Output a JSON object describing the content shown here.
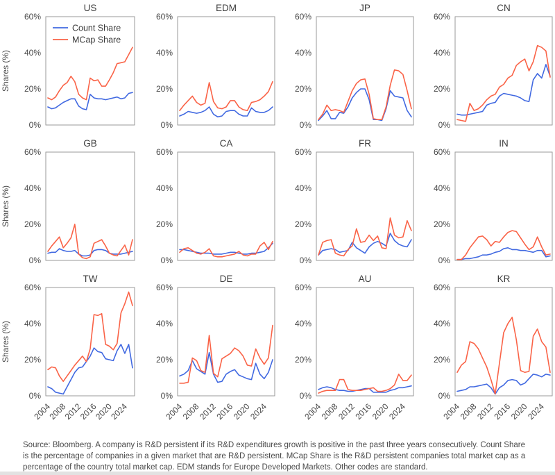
{
  "legend": {
    "items": [
      {
        "label": "Count Share",
        "color": "#4169e1"
      },
      {
        "label": "MCap Share",
        "color": "#fa6347"
      }
    ]
  },
  "footer": {
    "lines": [
      "Source: Bloomberg.  A company is R&D persistent if its R&D expenditures growth is positive in the past three years consecutively.  Count Share",
      "is the percentage of companies in a given market that are R&D persistent.  MCap Share is the R&D persistent companies total market cap as a",
      "percentage of the country total market cap.  EDM stands for Europe Developed Markets. Other codes are standard."
    ]
  },
  "chart_data": {
    "type": "line",
    "layout": "small-multiples-4x3",
    "grid": false,
    "legend_position": "inside-first-panel-top-left",
    "x": [
      2004,
      2005,
      2006,
      2007,
      2008,
      2009,
      2010,
      2011,
      2012,
      2013,
      2014,
      2015,
      2016,
      2017,
      2018,
      2019,
      2020,
      2021,
      2022,
      2023,
      2024,
      2025,
      2026
    ],
    "xticks": [
      2004,
      2008,
      2012,
      2016,
      2020,
      2024
    ],
    "ylim": [
      0,
      60
    ],
    "yticks": [
      0,
      20,
      40,
      60
    ],
    "ytick_labels": [
      "0%",
      "20%",
      "40%",
      "60%"
    ],
    "ylabel": "Shares (%)",
    "series_names": [
      "Count Share",
      "MCap Share"
    ],
    "colors": {
      "count_share": "#4169e1",
      "mcap_share": "#fa6347"
    },
    "panels": [
      {
        "title": "US",
        "count_share": [
          10,
          9,
          9.5,
          11,
          12.5,
          13.5,
          14.5,
          14.5,
          10.5,
          9,
          8.5,
          17,
          15,
          14.5,
          14.5,
          14,
          14.5,
          15,
          15.5,
          14.5,
          15,
          17.5,
          18
        ],
        "mcap_share": [
          15,
          14,
          15.5,
          19,
          22,
          23.5,
          27,
          24,
          17,
          15,
          14,
          26,
          24.5,
          25,
          21.5,
          21.5,
          25,
          29,
          34,
          34.5,
          35,
          39,
          43
        ]
      },
      {
        "title": "EDM",
        "count_share": [
          5,
          6,
          7.5,
          7,
          6.5,
          7,
          8,
          10,
          6,
          4.5,
          5,
          7.5,
          8,
          8,
          6,
          5,
          5,
          9.5,
          7.5,
          7,
          7,
          8,
          10
        ],
        "mcap_share": [
          8,
          11,
          13.5,
          16,
          12.5,
          11,
          12,
          23.5,
          13,
          9.5,
          9,
          10,
          13.5,
          13.5,
          10,
          8.5,
          8,
          12.5,
          13,
          14,
          16,
          18.5,
          24
        ]
      },
      {
        "title": "JP",
        "count_share": [
          2.5,
          5,
          8,
          3.5,
          3.5,
          7,
          6.5,
          10,
          15,
          18,
          20,
          20,
          14,
          3,
          3,
          2.5,
          9,
          19,
          16,
          15.5,
          15,
          8,
          4.5
        ],
        "mcap_share": [
          3,
          6,
          11,
          8,
          8.5,
          8,
          7,
          13,
          19,
          23,
          25,
          25.5,
          17,
          3.5,
          3,
          3,
          10,
          22,
          30.5,
          30,
          28,
          19,
          9
        ]
      },
      {
        "title": "CN",
        "count_share": [
          6,
          5.5,
          5.5,
          6,
          6.5,
          7,
          7.5,
          11,
          12,
          12.5,
          16,
          17.5,
          17,
          16.5,
          16,
          15,
          13.5,
          13,
          25,
          28.5,
          26,
          33.5,
          27
        ],
        "mcap_share": [
          3,
          2.5,
          2,
          12,
          8,
          9,
          11,
          14,
          16,
          17,
          21,
          22.5,
          26,
          27.5,
          33,
          35,
          36.5,
          30,
          35,
          44,
          43,
          41,
          26.5
        ]
      },
      {
        "title": "GB",
        "count_share": [
          4,
          4.5,
          4.5,
          6.5,
          5.5,
          5,
          5,
          5.5,
          3.5,
          2.5,
          2.5,
          3,
          5.5,
          6,
          6,
          5.5,
          4,
          3.5,
          3.5,
          3.5,
          4,
          4.5,
          5
        ],
        "mcap_share": [
          5,
          8,
          10.5,
          13,
          7,
          9.5,
          12.5,
          20,
          3.5,
          1.5,
          1,
          2,
          9.5,
          10.5,
          11.5,
          8,
          4,
          3,
          2.5,
          5.5,
          8.5,
          3,
          11.5
        ]
      },
      {
        "title": "CA",
        "count_share": [
          6,
          6,
          5.5,
          5,
          4.5,
          4,
          4,
          4,
          3.5,
          3.5,
          3.5,
          4,
          4.5,
          4.5,
          4,
          3.5,
          3.5,
          4,
          4,
          4.5,
          5,
          7,
          9.5
        ],
        "mcap_share": [
          4.5,
          6.5,
          7,
          5.5,
          4,
          3.5,
          4.5,
          6.5,
          2.5,
          2,
          2,
          2.5,
          3,
          3.5,
          5,
          3,
          2.5,
          3.5,
          3.5,
          8,
          10,
          6,
          10.5
        ]
      },
      {
        "title": "FR",
        "count_share": [
          3,
          5.5,
          6,
          6.5,
          6,
          4.5,
          5,
          5.5,
          10,
          7,
          5.5,
          4,
          7.5,
          9.5,
          10.5,
          9.5,
          8,
          15,
          11,
          9,
          8,
          7.5,
          11.5
        ],
        "mcap_share": [
          3,
          10,
          11,
          11.5,
          4,
          3,
          2.5,
          6,
          8,
          17.5,
          10,
          10.5,
          14,
          11,
          13.5,
          7,
          6.5,
          23.5,
          14,
          12.5,
          13,
          22,
          16.5
        ]
      },
      {
        "title": "IN",
        "count_share": [
          0.5,
          0.5,
          1,
          1,
          1.5,
          2,
          3,
          3,
          3.5,
          4.5,
          5,
          6.5,
          7,
          6,
          6,
          5.5,
          5.5,
          5,
          4.5,
          5.5,
          5.5,
          2,
          2.5
        ],
        "mcap_share": [
          0.5,
          0.5,
          3,
          7,
          10,
          13,
          13.5,
          11.5,
          8,
          10.5,
          10,
          13,
          15.5,
          16.5,
          16,
          12.5,
          9,
          6,
          7.5,
          13,
          7.5,
          3,
          3.5
        ]
      },
      {
        "title": "TW",
        "count_share": [
          5,
          4,
          2,
          1.5,
          1,
          5,
          9,
          13,
          15.5,
          16,
          19,
          22,
          26.5,
          24.5,
          24,
          20.5,
          20,
          19.5,
          25,
          28.5,
          23.5,
          28.5,
          15.5
        ],
        "mcap_share": [
          14.5,
          16,
          15.5,
          11,
          8,
          11,
          14,
          17,
          19.5,
          22,
          19,
          26,
          45,
          44.5,
          45.5,
          28.5,
          27.5,
          25.5,
          29,
          46,
          51,
          57.5,
          50
        ]
      },
      {
        "title": "DE",
        "count_share": [
          11,
          12,
          14,
          19.5,
          15,
          13.5,
          12,
          24,
          12,
          7.5,
          8,
          12,
          13.5,
          14.5,
          11.5,
          10.5,
          9.5,
          9,
          18,
          12,
          9.5,
          13,
          20
        ],
        "mcap_share": [
          7,
          7,
          7.5,
          21,
          19.5,
          14,
          13,
          33.5,
          12.5,
          10.5,
          20.5,
          22,
          23.5,
          26.5,
          25,
          22,
          17,
          16.5,
          26,
          21,
          17.5,
          21,
          39
        ]
      },
      {
        "title": "AU",
        "count_share": [
          3.5,
          4.5,
          5,
          4.5,
          3.5,
          3,
          3,
          2.5,
          2.5,
          3,
          3.5,
          4,
          4,
          2,
          2,
          2,
          2,
          3,
          3.5,
          4.5,
          4.5,
          5,
          5.5
        ],
        "mcap_share": [
          1.5,
          2.5,
          3,
          3,
          3,
          9,
          9,
          3.5,
          3,
          3,
          3,
          3.5,
          4,
          4.5,
          2.5,
          2.5,
          3,
          4,
          6,
          12,
          8.5,
          8.5,
          11.5
        ]
      },
      {
        "title": "KR",
        "count_share": [
          2.5,
          3,
          3.5,
          5,
          5,
          5.5,
          6,
          6.5,
          4.5,
          1,
          4.5,
          6,
          8.5,
          9,
          8.5,
          6,
          7,
          9.5,
          12,
          11.5,
          10.5,
          12,
          11.5
        ],
        "mcap_share": [
          13,
          17,
          19,
          30,
          29,
          26,
          21,
          16,
          9,
          1,
          18,
          35,
          40,
          43.5,
          31,
          14,
          13,
          13.5,
          33,
          37,
          30,
          27,
          13
        ]
      }
    ]
  }
}
